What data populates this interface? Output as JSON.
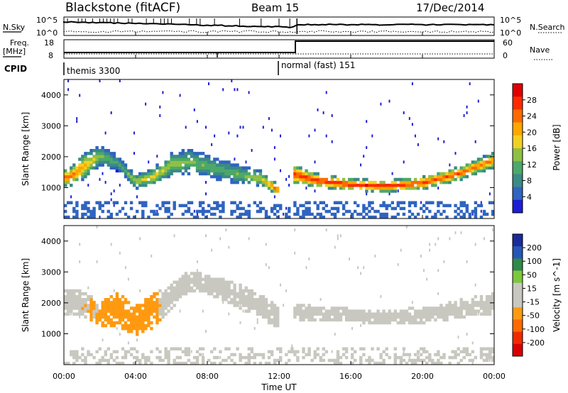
{
  "header": {
    "station": "Blackstone (fitACF)",
    "beam": "Beam 15",
    "date": "17/Dec/2014"
  },
  "status_panels": {
    "nsky_label": "N.Sky",
    "nsearch_label": "N.Search",
    "freq_label_line1": "Freq.",
    "freq_label_line2": "[MHz]",
    "nave_label": "Nave",
    "cpid_label": "CPID",
    "count_ticks": [
      "10^5",
      "10^0"
    ],
    "freq_ticks": [
      "18",
      "8"
    ],
    "nave_ticks": [
      "60",
      "0"
    ],
    "modes": [
      {
        "label": "themis 3300",
        "start_hour": 0,
        "end_hour": 12
      },
      {
        "label": "normal (fast) 151",
        "start_hour": 12,
        "end_hour": 24
      }
    ]
  },
  "time_axis": {
    "label": "Time UT",
    "ticks": [
      "00:00",
      "04:00",
      "08:00",
      "12:00",
      "16:00",
      "20:00",
      "00:00"
    ]
  },
  "colors": {
    "power_scale": [
      "#1d1dd6",
      "#2f64c0",
      "#3a8a85",
      "#4ca76a",
      "#8fc043",
      "#f2d022",
      "#ffa600",
      "#ff6a00",
      "#ff2a00",
      "#e00000"
    ],
    "velocity_scale": [
      "#1a2a9a",
      "#2456b8",
      "#2e8a4a",
      "#7cc83c",
      "#c8c8c0",
      "#c8c8c0",
      "#ff9a10",
      "#ff6a00",
      "#f02a00",
      "#d80000"
    ]
  },
  "chart_data": [
    {
      "type": "heatmap",
      "name": "power-panel",
      "ylabel": "Slant Range [km]",
      "yticks": [
        "1000",
        "2000",
        "3000",
        "4000"
      ],
      "ylim": [
        0,
        4500
      ],
      "xlim": [
        0,
        24
      ],
      "colorbar": {
        "label": "Power [dB]",
        "ticks": [
          "4",
          "8",
          "12",
          "16",
          "20",
          "24",
          "28"
        ],
        "range": [
          0,
          32
        ]
      },
      "bands": [
        {
          "hours": [
            0,
            0.5,
            1,
            2,
            3,
            4,
            5,
            6,
            7,
            8,
            9,
            10,
            11,
            11.5,
            12
          ],
          "center": [
            1300,
            1400,
            1650,
            2050,
            1800,
            1200,
            1350,
            1750,
            1850,
            1700,
            1550,
            1400,
            1300,
            1100,
            900
          ],
          "width": [
            550,
            650,
            850,
            700,
            550,
            450,
            600,
            750,
            800,
            750,
            700,
            600,
            500,
            450,
            350
          ],
          "peak_db": [
            26,
            25,
            22,
            14,
            10,
            16,
            18,
            16,
            14,
            13,
            12,
            14,
            18,
            22,
            26
          ]
        },
        {
          "hours": [
            12.8,
            14,
            16,
            18,
            20,
            22,
            24
          ],
          "center": [
            1450,
            1250,
            1100,
            1050,
            1150,
            1450,
            1900
          ],
          "width": [
            650,
            450,
            380,
            380,
            420,
            450,
            500
          ],
          "peak_db": [
            28,
            29,
            29,
            29,
            28,
            26,
            24
          ]
        }
      ]
    },
    {
      "type": "heatmap",
      "name": "velocity-panel",
      "ylabel": "Slant Range [km]",
      "yticks": [
        "1000",
        "2000",
        "3000",
        "4000"
      ],
      "ylim": [
        0,
        4500
      ],
      "xlim": [
        0,
        24
      ],
      "colorbar": {
        "label": "Velocity [m s^-1]",
        "ticks": [
          "200",
          "100",
          "50",
          "15",
          "-15",
          "-50",
          "-100",
          "-200"
        ],
        "range": [
          -250,
          250
        ]
      },
      "bands": [
        {
          "hours": [
            0,
            1,
            2,
            3,
            4,
            5,
            6,
            7,
            8,
            9,
            10,
            11,
            12
          ],
          "center": [
            2000,
            2000,
            1650,
            1800,
            1400,
            1750,
            2200,
            2700,
            2600,
            2400,
            2150,
            1900,
            1500
          ],
          "width": [
            900,
            800,
            800,
            1100,
            1000,
            1100,
            900,
            700,
            600,
            700,
            800,
            800,
            700
          ],
          "velocity": [
            -20,
            -40,
            -60,
            -80,
            -90,
            -70,
            -15,
            -10,
            -10,
            -10,
            -10,
            -10,
            40
          ]
        },
        {
          "hours": [
            12.8,
            14,
            16,
            18,
            20,
            22,
            24
          ],
          "center": [
            1750,
            1650,
            1600,
            1550,
            1600,
            1800,
            2000
          ],
          "width": [
            550,
            500,
            450,
            500,
            500,
            600,
            700
          ],
          "velocity": [
            -5,
            -10,
            -10,
            -10,
            -10,
            -10,
            -10
          ]
        }
      ]
    }
  ]
}
